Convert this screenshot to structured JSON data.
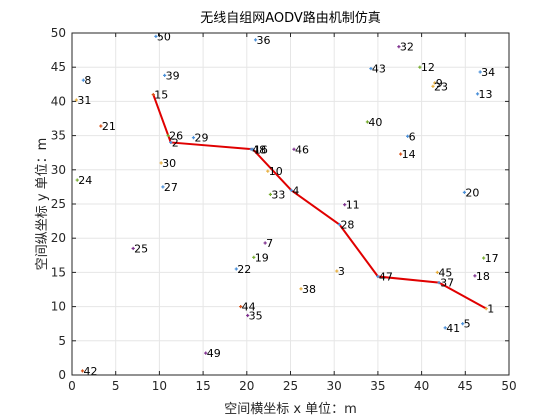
{
  "chart_data": {
    "type": "scatter",
    "title": "无线自组网AODV路由机制仿真",
    "xlabel": "空间横坐标 x  单位：m",
    "ylabel": "空间纵坐标 y  单位：m",
    "xlim": [
      0,
      50
    ],
    "ylim": [
      0,
      50
    ],
    "xticks": [
      "0",
      "5",
      "10",
      "15",
      "20",
      "25",
      "30",
      "35",
      "40",
      "45",
      "50"
    ],
    "yticks": [
      "0",
      "5",
      "10",
      "15",
      "20",
      "25",
      "30",
      "35",
      "40",
      "45",
      "50"
    ],
    "grid": true,
    "route_color": "#e00000",
    "nodes": [
      {
        "label": "1",
        "x": 47.4,
        "y": 9.7,
        "color": "#e8b040"
      },
      {
        "label": "2",
        "x": 11.3,
        "y": 34.0,
        "color": "#4a90d9"
      },
      {
        "label": "3",
        "x": 30.3,
        "y": 15.2,
        "color": "#e8b040"
      },
      {
        "label": "4",
        "x": 25.1,
        "y": 27.0,
        "color": "#4a90d9"
      },
      {
        "label": "5",
        "x": 44.7,
        "y": 7.5,
        "color": "#4a90d9"
      },
      {
        "label": "6",
        "x": 38.4,
        "y": 34.9,
        "color": "#4a90d9"
      },
      {
        "label": "7",
        "x": 22.1,
        "y": 19.3,
        "color": "#7e2f8e"
      },
      {
        "label": "8",
        "x": 1.3,
        "y": 43.1,
        "color": "#4a90d9"
      },
      {
        "label": "9",
        "x": 41.5,
        "y": 42.7,
        "color": "#e8b040"
      },
      {
        "label": "10",
        "x": 22.4,
        "y": 29.8,
        "color": "#e8b040"
      },
      {
        "label": "11",
        "x": 31.2,
        "y": 24.9,
        "color": "#7e2f8e"
      },
      {
        "label": "12",
        "x": 39.8,
        "y": 45.0,
        "color": "#77ac30"
      },
      {
        "label": "13",
        "x": 46.4,
        "y": 41.1,
        "color": "#4a90d9"
      },
      {
        "label": "14",
        "x": 37.6,
        "y": 32.3,
        "color": "#d95319"
      },
      {
        "label": "15",
        "x": 9.3,
        "y": 41.0,
        "color": "#d95319"
      },
      {
        "label": "16",
        "x": 20.7,
        "y": 33.0,
        "color": "#4a90d9"
      },
      {
        "label": "17",
        "x": 47.1,
        "y": 17.1,
        "color": "#77ac30"
      },
      {
        "label": "18",
        "x": 46.1,
        "y": 14.5,
        "color": "#7e2f8e"
      },
      {
        "label": "19",
        "x": 20.8,
        "y": 17.2,
        "color": "#77ac30"
      },
      {
        "label": "20",
        "x": 44.9,
        "y": 26.7,
        "color": "#4a90d9"
      },
      {
        "label": "21",
        "x": 3.3,
        "y": 36.4,
        "color": "#d95319"
      },
      {
        "label": "22",
        "x": 18.8,
        "y": 15.5,
        "color": "#4a90d9"
      },
      {
        "label": "23",
        "x": 41.3,
        "y": 42.2,
        "color": "#e8b040"
      },
      {
        "label": "24",
        "x": 0.6,
        "y": 28.5,
        "color": "#77ac30"
      },
      {
        "label": "25",
        "x": 7.0,
        "y": 18.5,
        "color": "#7e2f8e"
      },
      {
        "label": "26",
        "x": 11.0,
        "y": 35.0,
        "color": "#77ac30"
      },
      {
        "label": "27",
        "x": 10.4,
        "y": 27.5,
        "color": "#4a90d9"
      },
      {
        "label": "28",
        "x": 30.6,
        "y": 22.0,
        "color": "#4a90d9"
      },
      {
        "label": "29",
        "x": 13.9,
        "y": 34.7,
        "color": "#4a90d9"
      },
      {
        "label": "30",
        "x": 10.2,
        "y": 31.0,
        "color": "#e8b040"
      },
      {
        "label": "31",
        "x": 0.5,
        "y": 40.2,
        "color": "#e8b040"
      },
      {
        "label": "32",
        "x": 37.4,
        "y": 48.0,
        "color": "#7e2f8e"
      },
      {
        "label": "33",
        "x": 22.7,
        "y": 26.4,
        "color": "#77ac30"
      },
      {
        "label": "34",
        "x": 46.7,
        "y": 44.3,
        "color": "#4a90d9"
      },
      {
        "label": "35",
        "x": 20.1,
        "y": 8.7,
        "color": "#7e2f8e"
      },
      {
        "label": "36",
        "x": 21.0,
        "y": 49.0,
        "color": "#4a90d9"
      },
      {
        "label": "37",
        "x": 42.0,
        "y": 13.5,
        "color": "#4a90d9"
      },
      {
        "label": "38",
        "x": 26.2,
        "y": 12.6,
        "color": "#e8b040"
      },
      {
        "label": "39",
        "x": 10.6,
        "y": 43.8,
        "color": "#4a90d9"
      },
      {
        "label": "40",
        "x": 33.8,
        "y": 37.0,
        "color": "#77ac30"
      },
      {
        "label": "41",
        "x": 42.7,
        "y": 6.9,
        "color": "#4a90d9"
      },
      {
        "label": "42",
        "x": 1.2,
        "y": 0.6,
        "color": "#d95319"
      },
      {
        "label": "43",
        "x": 34.2,
        "y": 44.8,
        "color": "#4a90d9"
      },
      {
        "label": "44",
        "x": 19.3,
        "y": 10.0,
        "color": "#d95319"
      },
      {
        "label": "45",
        "x": 41.8,
        "y": 15.0,
        "color": "#e8b040"
      },
      {
        "label": "46",
        "x": 25.4,
        "y": 33.0,
        "color": "#7e2f8e"
      },
      {
        "label": "47",
        "x": 35.0,
        "y": 14.4,
        "color": "#4a90d9"
      },
      {
        "label": "48",
        "x": 20.5,
        "y": 33.0,
        "color": "#4a90d9"
      },
      {
        "label": "49",
        "x": 15.3,
        "y": 3.2,
        "color": "#7e2f8e"
      },
      {
        "label": "50",
        "x": 9.6,
        "y": 49.5,
        "color": "#4a90d9"
      }
    ],
    "route": [
      [
        47.4,
        9.7
      ],
      [
        42.0,
        13.5
      ],
      [
        35.0,
        14.4
      ],
      [
        30.6,
        22.0
      ],
      [
        25.1,
        27.0
      ],
      [
        20.7,
        33.0
      ],
      [
        11.3,
        34.0
      ],
      [
        9.3,
        41.0
      ]
    ]
  }
}
